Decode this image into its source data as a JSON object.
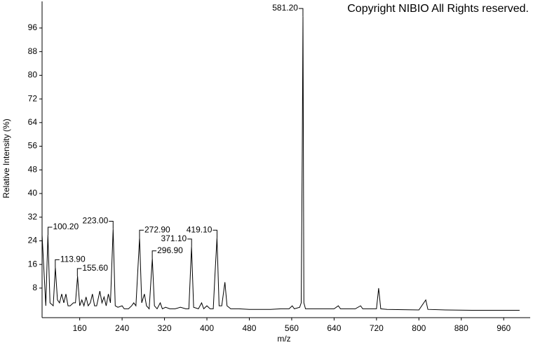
{
  "chart_data": {
    "type": "line",
    "annotation": "Copyright NIBIO All Rights reserved.",
    "x_label": "m/z",
    "y_label": "Relative Intensity (%)",
    "color": "#000000",
    "x": [
      89,
      96,
      100,
      104,
      110,
      114,
      118,
      122,
      126,
      130,
      134,
      138,
      142,
      148,
      152,
      156,
      160,
      164,
      168,
      172,
      176,
      180,
      184,
      188,
      192,
      198,
      202,
      206,
      210,
      214,
      218,
      223,
      227,
      232,
      240,
      244,
      252,
      258,
      262,
      266,
      273,
      277,
      282,
      286,
      291,
      297,
      301,
      306,
      312,
      316,
      322,
      330,
      340,
      350,
      360,
      366,
      371,
      375,
      384,
      390,
      394,
      400,
      406,
      412,
      415,
      419,
      423,
      428,
      434,
      438,
      445,
      460,
      480,
      500,
      520,
      540,
      555,
      561,
      565,
      575,
      578,
      580,
      581.2,
      583,
      586,
      600,
      620,
      640,
      648,
      652,
      670,
      680,
      690,
      694,
      720,
      724,
      728,
      740,
      800,
      813,
      817,
      850,
      900,
      950,
      990
    ],
    "values": [
      26,
      2,
      26,
      3,
      2,
      15,
      4,
      3,
      6,
      3,
      6,
      2,
      2,
      3,
      3,
      12,
      2,
      4,
      2,
      5,
      2,
      3,
      6,
      2,
      2,
      7,
      3,
      5,
      2,
      6,
      3,
      28,
      2,
      1.5,
      2,
      1,
      1,
      2,
      3,
      2,
      25,
      3,
      6,
      2,
      1,
      18,
      2,
      1,
      3,
      1,
      1.5,
      1,
      1,
      1.5,
      1,
      1,
      22,
      1.5,
      1,
      3,
      1,
      2,
      1,
      1,
      12,
      25,
      2,
      2,
      10,
      2,
      1,
      1,
      0.8,
      0.8,
      0.8,
      1,
      1,
      2,
      1,
      1.5,
      3,
      55,
      100,
      3,
      1,
      1,
      1,
      1,
      2,
      1,
      1,
      1,
      2,
      1,
      1,
      8,
      1,
      0.8,
      0.6,
      4,
      0.8,
      0.6,
      0.5,
      0.5,
      0.5
    ],
    "peaks": [
      {
        "x": 100.2,
        "y": 26,
        "label": "100.20"
      },
      {
        "x": 113.9,
        "y": 15,
        "label": "113.90"
      },
      {
        "x": 155.6,
        "y": 12,
        "label": "155.60"
      },
      {
        "x": 223.0,
        "y": 28,
        "label": "223.00"
      },
      {
        "x": 272.9,
        "y": 25,
        "label": "272.90"
      },
      {
        "x": 296.9,
        "y": 18,
        "label": "296.90"
      },
      {
        "x": 371.1,
        "y": 22,
        "label": "371.10"
      },
      {
        "x": 419.1,
        "y": 25,
        "label": "419.10"
      },
      {
        "x": 581.2,
        "y": 100,
        "label": "581.20"
      }
    ],
    "xlim": [
      89,
      1010
    ],
    "ylim": [
      -2,
      105
    ],
    "xticks": [
      160,
      240,
      320,
      400,
      480,
      560,
      640,
      720,
      800,
      880,
      960
    ],
    "yticks": [
      8,
      16,
      24,
      32,
      40,
      48,
      56,
      64,
      72,
      80,
      88,
      96
    ]
  }
}
